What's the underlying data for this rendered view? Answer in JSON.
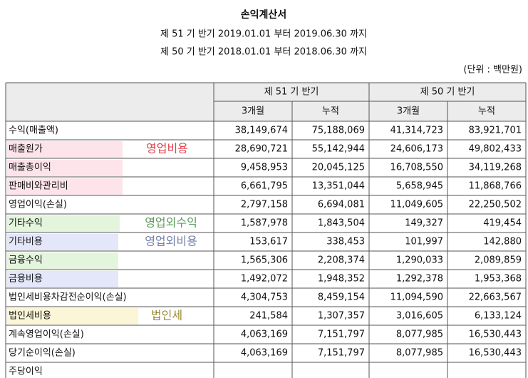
{
  "header": {
    "title": "손익계산서",
    "periods": [
      "제 51 기 반기 2019.01.01 부터 2019.06.30 까지",
      "제 50 기 반기 2018.01.01 부터 2018.06.30 까지"
    ],
    "unit": "(단위 : 백만원)"
  },
  "table": {
    "headers": [
      "제 51 기 반기",
      "제 50 기 반기"
    ],
    "subheaders": [
      "3개월",
      "누적",
      "3개월",
      "누적"
    ],
    "rows": [
      {
        "label": "수익(매출액)",
        "values": [
          "38,149,674",
          "75,188,069",
          "41,314,723",
          "83,921,701"
        ]
      },
      {
        "label": "매출원가",
        "note": "영업비용",
        "values": [
          "28,690,721",
          "55,142,944",
          "24,606,173",
          "49,802,433"
        ]
      },
      {
        "label": "매출총이익",
        "values": [
          "9,458,953",
          "20,045,125",
          "16,708,550",
          "34,119,268"
        ]
      },
      {
        "label": "판매비와관리비",
        "values": [
          "6,661,795",
          "13,351,044",
          "5,658,945",
          "11,868,766"
        ]
      },
      {
        "label": "영업이익(손실)",
        "values": [
          "2,797,158",
          "6,694,081",
          "11,049,605",
          "22,250,502"
        ]
      },
      {
        "label": "기타수익",
        "note": "영업외수익",
        "values": [
          "1,587,978",
          "1,843,504",
          "149,327",
          "419,454"
        ]
      },
      {
        "label": "기타비용",
        "note": "영업외비용",
        "values": [
          "153,617",
          "338,453",
          "101,997",
          "142,880"
        ]
      },
      {
        "label": "금융수익",
        "values": [
          "1,565,306",
          "2,208,374",
          "1,290,033",
          "2,089,859"
        ]
      },
      {
        "label": "금융비용",
        "values": [
          "1,492,072",
          "1,948,352",
          "1,292,378",
          "1,953,368"
        ]
      },
      {
        "label": "법인세비용차감전순이익(손실)",
        "values": [
          "4,304,753",
          "8,459,154",
          "11,094,590",
          "22,663,567"
        ]
      },
      {
        "label": "법인세비용",
        "note": "법인세",
        "values": [
          "241,584",
          "1,307,357",
          "3,016,605",
          "6,133,124"
        ]
      },
      {
        "label": "계속영업이익(손실)",
        "values": [
          "4,063,169",
          "7,151,797",
          "8,077,985",
          "16,530,443"
        ]
      },
      {
        "label": "당기순이익(손실)",
        "values": [
          "4,063,169",
          "7,151,797",
          "8,077,985",
          "16,530,443"
        ]
      },
      {
        "label": "주당이익",
        "values": []
      }
    ]
  }
}
